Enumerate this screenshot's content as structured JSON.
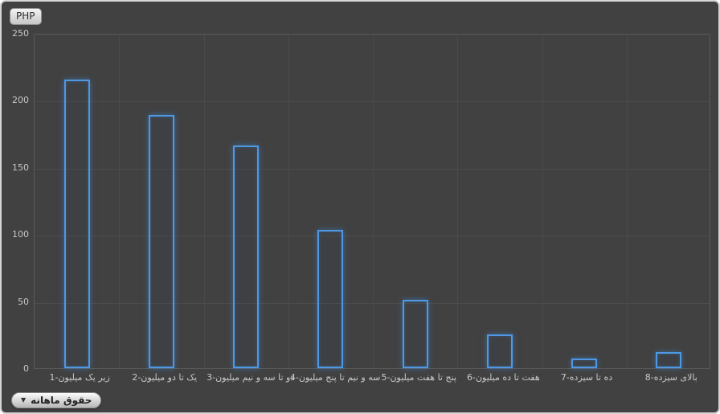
{
  "badge": {
    "label": "PHP"
  },
  "dropdown": {
    "label": "حقوق ماهانه",
    "icon": "chevron-down"
  },
  "colors": {
    "background": "#414141",
    "panel_border": "#d5d5d5",
    "plot_border": "#5a5a5a",
    "gridline": "#4c4c4c",
    "bar_stroke": "#4f98e3",
    "bar_glow": "rgba(62,136,216,0.55)",
    "axis_text": "#c8c8c8"
  },
  "chart_data": {
    "type": "bar",
    "title": "",
    "xlabel": "",
    "ylabel": "",
    "categories": [
      "1-زیر یک میلیون",
      "2-یک تا دو میلیون",
      "3-دو تا سه و نیم میلیون",
      "4-سه و نیم تا پنج میلیون",
      "5-پنج تا هفت میلیون",
      "6-هفت تا ده میلیون",
      "7-ده تا سیزده",
      "8-بالای سیزده"
    ],
    "values": [
      215,
      189,
      166,
      103,
      51,
      25,
      7,
      12
    ],
    "ylim": [
      0,
      250
    ],
    "yticks": [
      0,
      50,
      100,
      150,
      200,
      250
    ],
    "grid": true,
    "legend": "none",
    "bar_style": "outlined-transparent"
  }
}
